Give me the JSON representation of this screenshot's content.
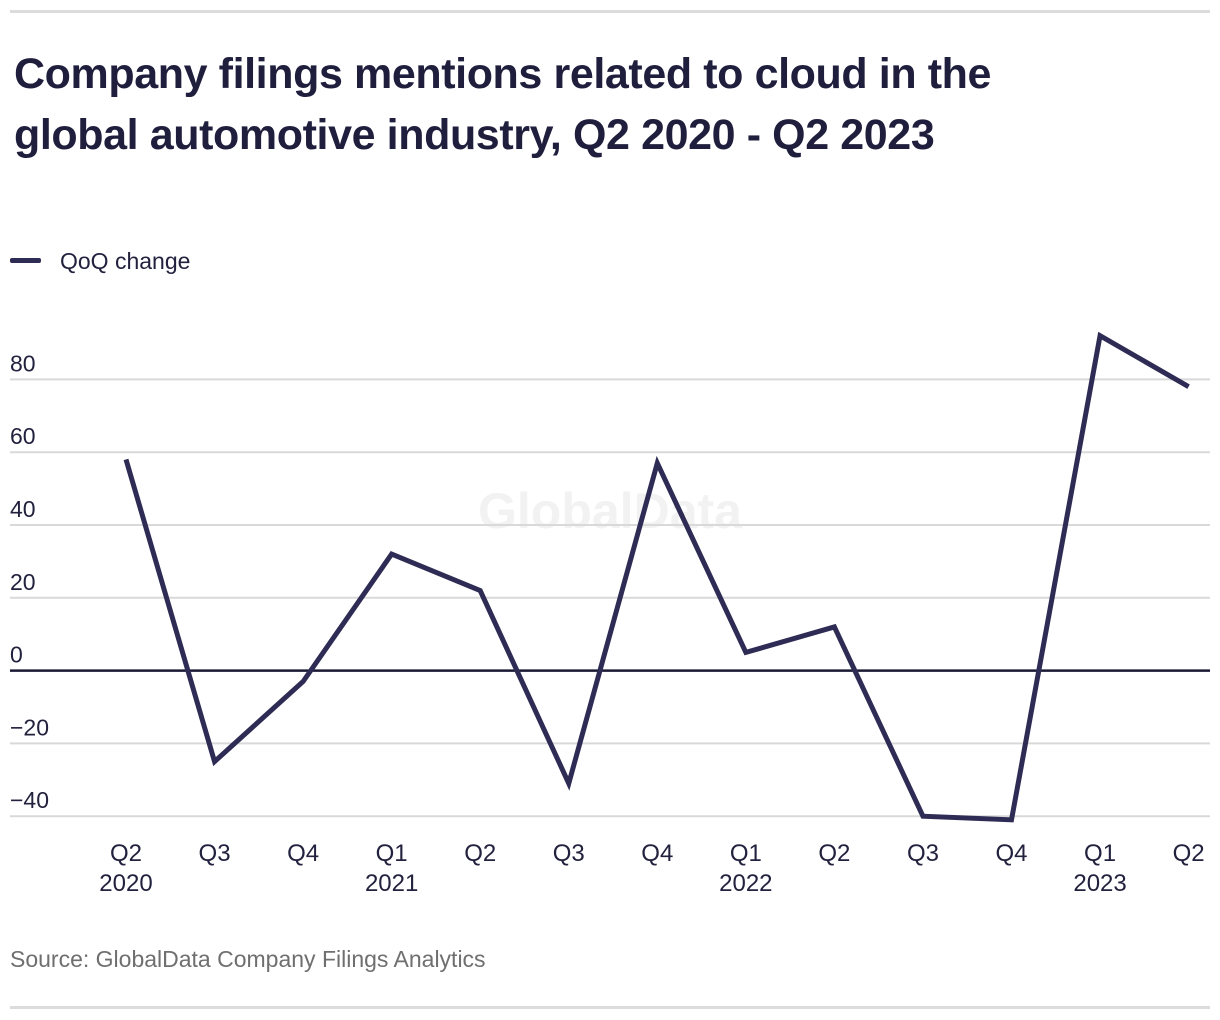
{
  "header": {
    "title_lines": [
      "Company filings mentions related to cloud in the",
      "global automotive industry, Q2 2020 - Q2 2023"
    ]
  },
  "legend": {
    "label": "QoQ change"
  },
  "watermark": {
    "text": "GlobalData"
  },
  "source": {
    "text": "Source: GlobalData Company Filings Analytics"
  },
  "colors": {
    "line": "#2e2c55",
    "zero_axis": "#191934",
    "gridline": "#d9d9d9",
    "axis_text": "#22213e",
    "title_text": "#1f1e3d",
    "source_text": "#6f6f6f",
    "watermark": "#f2f2f2",
    "divider": "#dcdcdc"
  },
  "chart_data": {
    "type": "line",
    "title": "Company filings mentions related to cloud in the global automotive industry, Q2 2020 - Q2 2023",
    "categories": [
      "Q2 2020",
      "Q3 2020",
      "Q4 2020",
      "Q1 2021",
      "Q2 2021",
      "Q3 2021",
      "Q4 2021",
      "Q1 2022",
      "Q2 2022",
      "Q3 2022",
      "Q4 2022",
      "Q1 2023",
      "Q2 2023"
    ],
    "series": [
      {
        "name": "QoQ change",
        "values": [
          58,
          -25,
          -3,
          32,
          22,
          -31,
          57,
          5,
          12,
          -40,
          -41,
          92,
          78
        ]
      }
    ],
    "xlabel": "",
    "ylabel": "",
    "ylim": [
      -48,
      96
    ],
    "grid": "horizontal",
    "legend_position": "top-left",
    "y_ticks": [
      {
        "value": 80,
        "label": "80"
      },
      {
        "value": 60,
        "label": "60"
      },
      {
        "value": 40,
        "label": "40"
      },
      {
        "value": 20,
        "label": "20"
      },
      {
        "value": 0,
        "label": "0"
      },
      {
        "value": -20,
        "label": "−20"
      },
      {
        "value": -40,
        "label": "−40"
      }
    ],
    "x_tick_labels": [
      {
        "quarter": "Q2",
        "year": "2020"
      },
      {
        "quarter": "Q3"
      },
      {
        "quarter": "Q4"
      },
      {
        "quarter": "Q1",
        "year": "2021"
      },
      {
        "quarter": "Q2"
      },
      {
        "quarter": "Q3"
      },
      {
        "quarter": "Q4"
      },
      {
        "quarter": "Q1",
        "year": "2022"
      },
      {
        "quarter": "Q2"
      },
      {
        "quarter": "Q3"
      },
      {
        "quarter": "Q4"
      },
      {
        "quarter": "Q1",
        "year": "2023"
      },
      {
        "quarter": "Q2"
      }
    ]
  }
}
